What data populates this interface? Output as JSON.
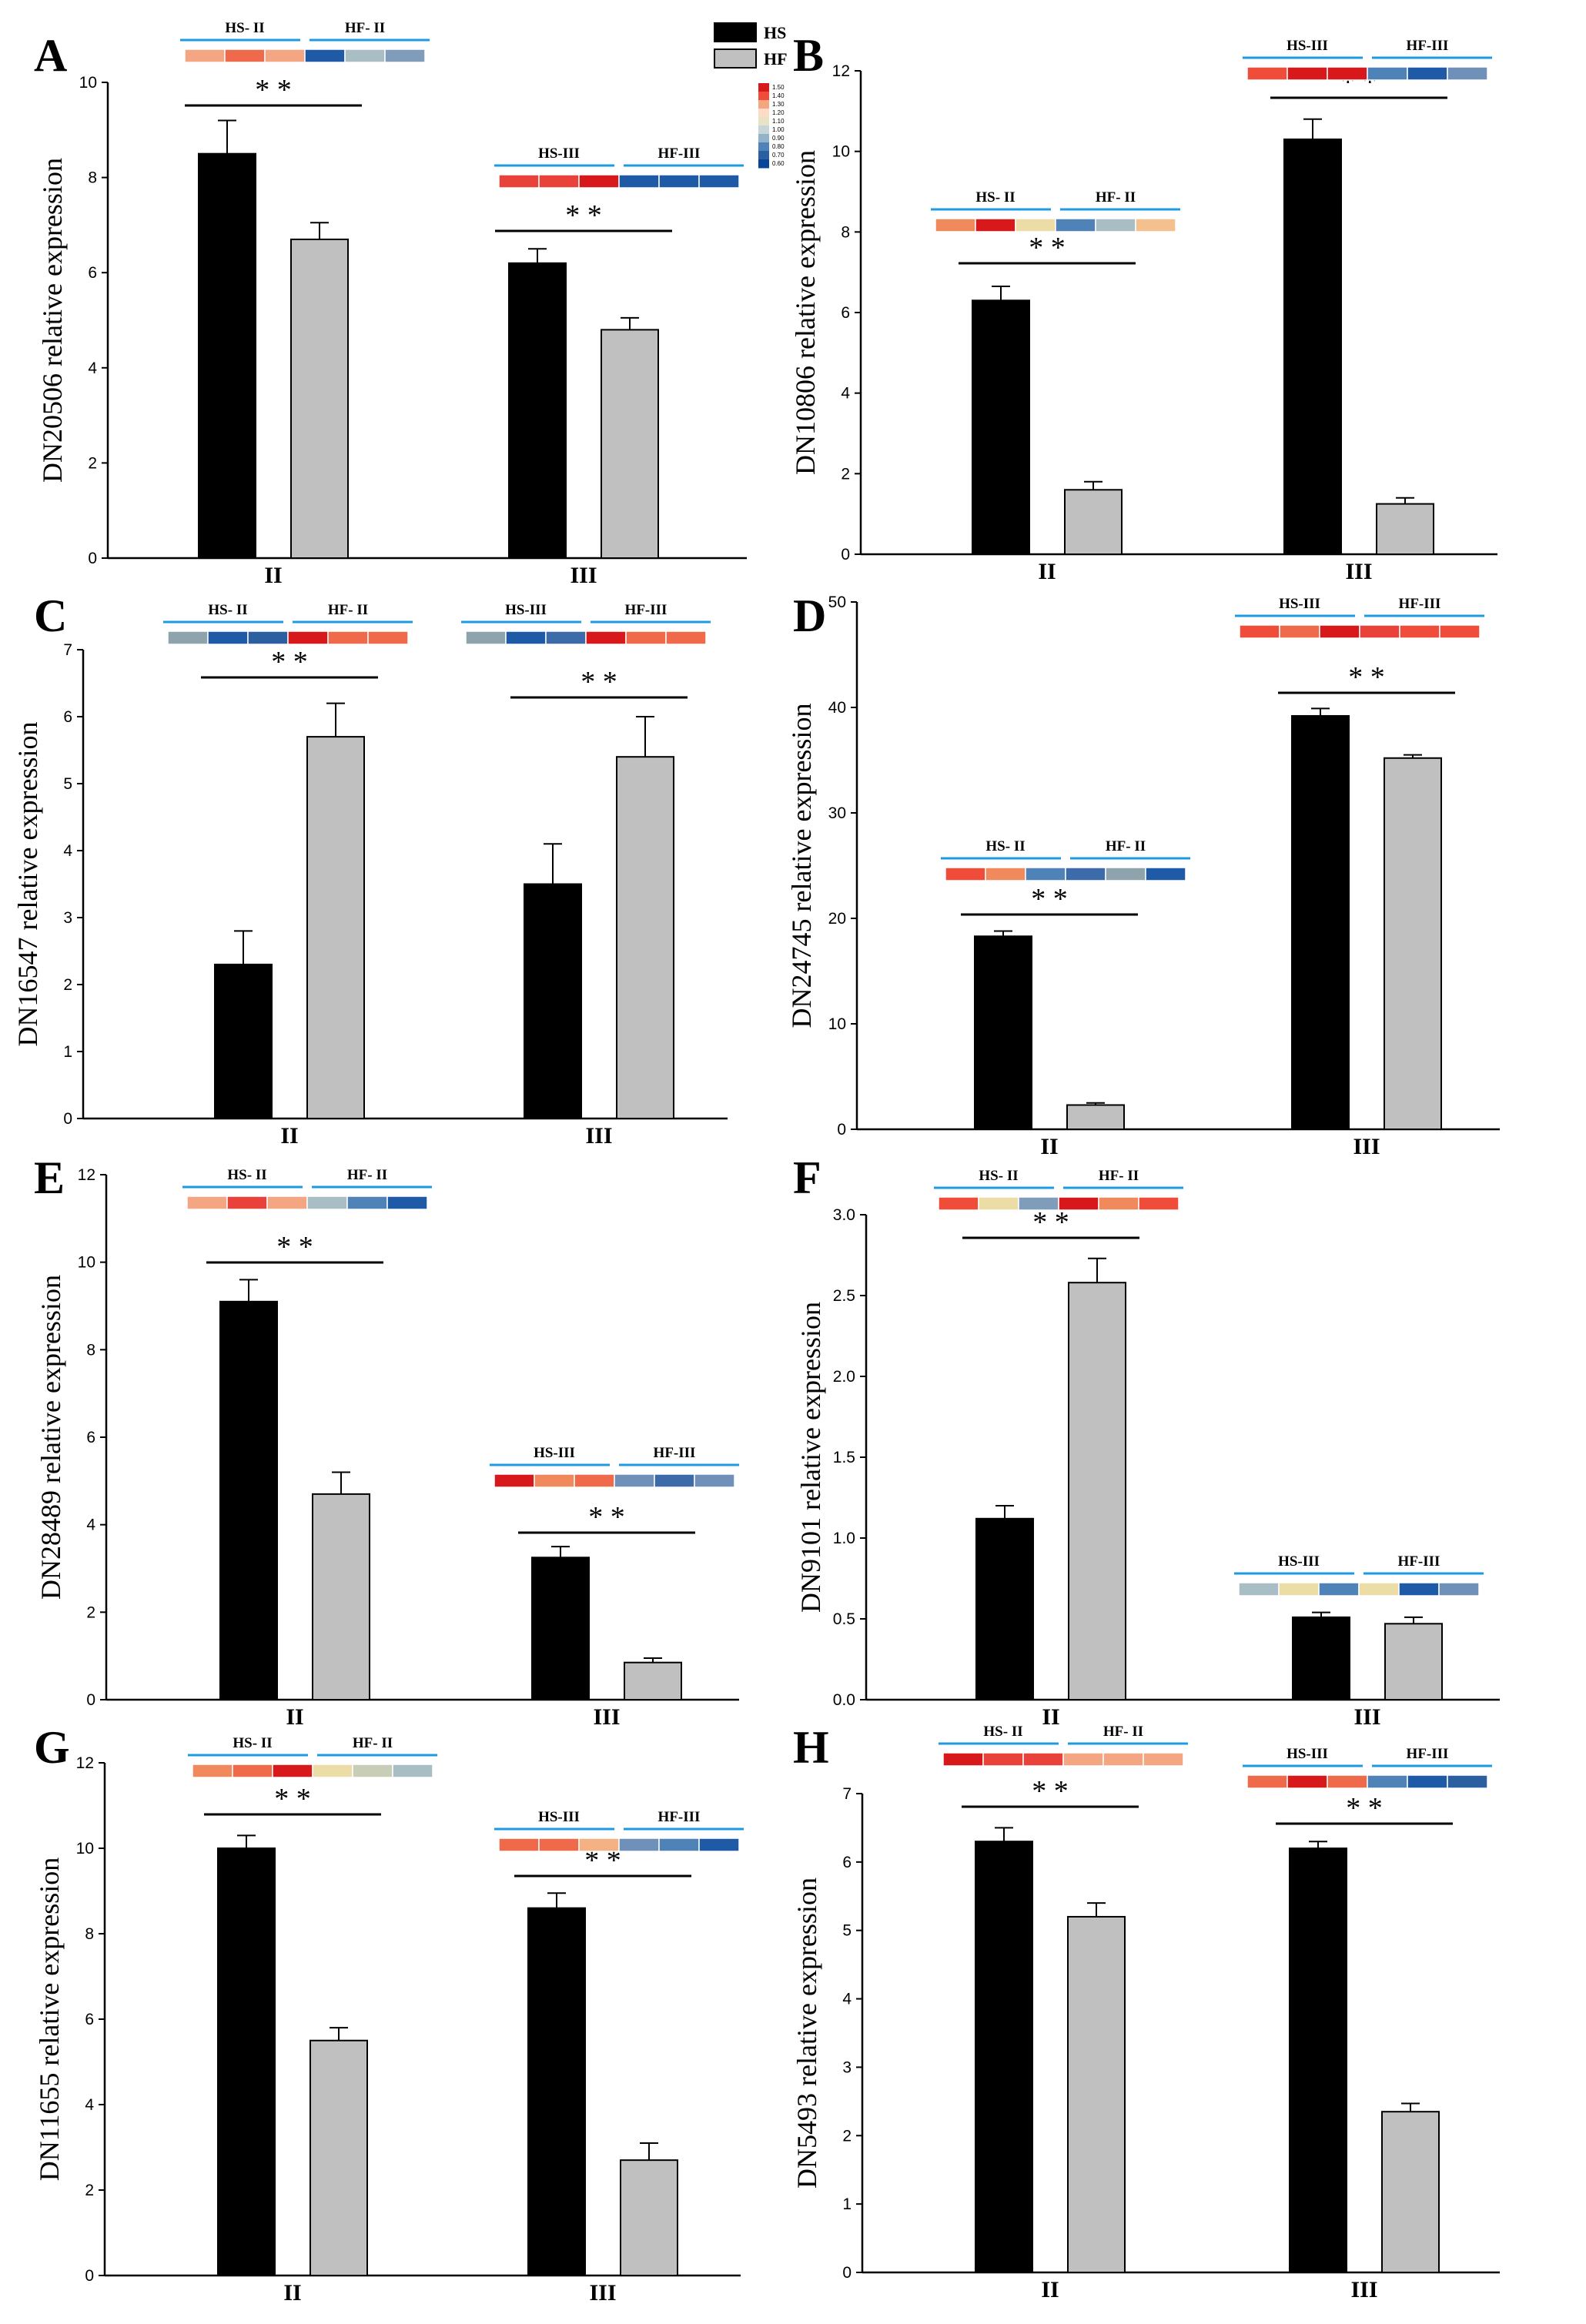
{
  "legend": {
    "items": [
      {
        "label": "HS",
        "color": "#000000"
      },
      {
        "label": "HF",
        "color": "#c0c0c0"
      }
    ],
    "colorbar": {
      "ticks": [
        "1.50",
        "1.40",
        "1.30",
        "1.20",
        "1.10",
        "1.00",
        "0.90",
        "0.80",
        "0.70",
        "0.60"
      ],
      "colors": [
        "#d7191c",
        "#ef4d3a",
        "#f4a582",
        "#fddbc7",
        "#e8e3c8",
        "#c6d6d8",
        "#92b4c8",
        "#4f82b6",
        "#2b5fa0",
        "#08449a"
      ]
    }
  },
  "chart_data": [
    {
      "letter": "A",
      "type": "bar",
      "ylabel": "DN20506 relative expression",
      "categories": [
        "II",
        "III"
      ],
      "ylim": [
        0,
        10
      ],
      "yticks": [
        "0",
        "2",
        "4",
        "6",
        "8",
        "10"
      ],
      "series": [
        {
          "name": "HS",
          "values": [
            8.5,
            6.2
          ],
          "errors": [
            0.7,
            0.3
          ]
        },
        {
          "name": "HF",
          "values": [
            6.7,
            4.8
          ],
          "errors": [
            0.35,
            0.25
          ]
        }
      ],
      "significance": [
        "* *",
        "* *"
      ],
      "heatmaps": [
        {
          "labels": [
            "HS- II",
            "HF- II"
          ],
          "colors": [
            "#f4a582",
            "#ef6a4a",
            "#f4a582",
            "#1f5aa6",
            "#a8bdc4",
            "#7f9dbb"
          ]
        },
        {
          "labels": [
            "HS-III",
            "HF-III"
          ],
          "colors": [
            "#e8423b",
            "#e8423b",
            "#d7191c",
            "#1f5aa6",
            "#1f5aa6",
            "#1f5aa6"
          ]
        }
      ]
    },
    {
      "letter": "B",
      "type": "bar",
      "ylabel": "DN10806 relative expression",
      "categories": [
        "II",
        "III"
      ],
      "ylim": [
        0,
        12
      ],
      "yticks": [
        "0",
        "2",
        "4",
        "6",
        "8",
        "10",
        "12"
      ],
      "series": [
        {
          "name": "HS",
          "values": [
            6.3,
            10.3
          ],
          "errors": [
            0.35,
            0.5
          ]
        },
        {
          "name": "HF",
          "values": [
            1.6,
            1.25
          ],
          "errors": [
            0.2,
            0.15
          ]
        }
      ],
      "significance": [
        "* *",
        "* *"
      ],
      "heatmaps": [
        {
          "labels": [
            "HS- II",
            "HF- II"
          ],
          "colors": [
            "#f08a5d",
            "#d7191c",
            "#ecdca6",
            "#4f82b6",
            "#a8bdc4",
            "#f4c08e"
          ]
        },
        {
          "labels": [
            "HS-III",
            "HF-III"
          ],
          "colors": [
            "#ef4d3a",
            "#d7191c",
            "#d7191c",
            "#4f82b6",
            "#1f5aa6",
            "#6f90b8"
          ]
        }
      ]
    },
    {
      "letter": "C",
      "type": "bar",
      "ylabel": "DN16547 relative expression",
      "categories": [
        "II",
        "III"
      ],
      "ylim": [
        0,
        7
      ],
      "yticks": [
        "0",
        "1",
        "2",
        "3",
        "4",
        "5",
        "6",
        "7"
      ],
      "series": [
        {
          "name": "HS",
          "values": [
            2.3,
            3.5
          ],
          "errors": [
            0.5,
            0.6
          ]
        },
        {
          "name": "HF",
          "values": [
            5.7,
            5.4
          ],
          "errors": [
            0.5,
            0.6
          ]
        }
      ],
      "significance": [
        "* *",
        "* *"
      ],
      "heatmaps": [
        {
          "labels": [
            "HS- II",
            "HF- II"
          ],
          "colors": [
            "#8fa3ad",
            "#1f5aa6",
            "#2b5fa0",
            "#d7191c",
            "#ef6a4a",
            "#ef6a4a"
          ]
        },
        {
          "labels": [
            "HS-III",
            "HF-III"
          ],
          "colors": [
            "#8fa3ad",
            "#1f5aa6",
            "#3d6aa8",
            "#d7191c",
            "#ef6a4a",
            "#ef6a4a"
          ]
        }
      ]
    },
    {
      "letter": "D",
      "type": "bar",
      "ylabel": "DN24745 relative expression",
      "categories": [
        "II",
        "III"
      ],
      "ylim": [
        0,
        50
      ],
      "yticks": [
        "0",
        "10",
        "20",
        "30",
        "40",
        "50"
      ],
      "series": [
        {
          "name": "HS",
          "values": [
            18.3,
            39.2
          ],
          "errors": [
            0.5,
            0.7
          ]
        },
        {
          "name": "HF",
          "values": [
            2.3,
            35.2
          ],
          "errors": [
            0.2,
            0.3
          ]
        }
      ],
      "significance": [
        "* *",
        "* *"
      ],
      "heatmaps": [
        {
          "labels": [
            "HS- II",
            "HF- II"
          ],
          "colors": [
            "#ef4d3a",
            "#f08a5d",
            "#4f82b6",
            "#3d6aa8",
            "#8fa3ad",
            "#1f5aa6"
          ]
        },
        {
          "labels": [
            "HS-III",
            "HF-III"
          ],
          "colors": [
            "#ef4d3a",
            "#ef6a4a",
            "#d7191c",
            "#e8423b",
            "#ef4d3a",
            "#ef4d3a"
          ]
        }
      ]
    },
    {
      "letter": "E",
      "type": "bar",
      "ylabel": "DN28489 relative expression",
      "categories": [
        "II",
        "III"
      ],
      "ylim": [
        0,
        12
      ],
      "yticks": [
        "0",
        "2",
        "4",
        "6",
        "8",
        "10",
        "12"
      ],
      "series": [
        {
          "name": "HS",
          "values": [
            9.1,
            3.25
          ],
          "errors": [
            0.5,
            0.25
          ]
        },
        {
          "name": "HF",
          "values": [
            4.7,
            0.85
          ],
          "errors": [
            0.5,
            0.1
          ]
        }
      ],
      "significance": [
        "* *",
        "* *"
      ],
      "heatmaps": [
        {
          "labels": [
            "HS- II",
            "HF- II"
          ],
          "colors": [
            "#f4a582",
            "#e8423b",
            "#f4a582",
            "#a8bdc4",
            "#4f82b6",
            "#1f5aa6"
          ]
        },
        {
          "labels": [
            "HS-III",
            "HF-III"
          ],
          "colors": [
            "#d7191c",
            "#f08a5d",
            "#ef6a4a",
            "#6f90b8",
            "#3d6aa8",
            "#6f90b8"
          ]
        }
      ]
    },
    {
      "letter": "F",
      "type": "bar",
      "ylabel": "DN9101 relative expression",
      "categories": [
        "II",
        "III"
      ],
      "ylim": [
        0,
        3.0
      ],
      "yticks": [
        "0.0",
        "0.5",
        "1.0",
        "1.5",
        "2.0",
        "2.5",
        "3.0"
      ],
      "series": [
        {
          "name": "HS",
          "values": [
            1.12,
            0.51
          ],
          "errors": [
            0.08,
            0.03
          ]
        },
        {
          "name": "HF",
          "values": [
            2.58,
            0.47
          ],
          "errors": [
            0.15,
            0.04
          ]
        }
      ],
      "significance": [
        "* *",
        ""
      ],
      "heatmaps": [
        {
          "labels": [
            "HS- II",
            "HF- II"
          ],
          "colors": [
            "#ef4d3a",
            "#ecdca6",
            "#7f9dbb",
            "#d7191c",
            "#f08a5d",
            "#ef4d3a"
          ]
        },
        {
          "labels": [
            "HS-III",
            "HF-III"
          ],
          "colors": [
            "#a8bdc4",
            "#ecdca6",
            "#4f82b6",
            "#ecdca6",
            "#1f5aa6",
            "#6f90b8"
          ]
        }
      ]
    },
    {
      "letter": "G",
      "type": "bar",
      "ylabel": "DN11655 relative expression",
      "categories": [
        "II",
        "III"
      ],
      "ylim": [
        0,
        12
      ],
      "yticks": [
        "0",
        "2",
        "4",
        "6",
        "8",
        "10",
        "12"
      ],
      "series": [
        {
          "name": "HS",
          "values": [
            10.0,
            8.6
          ],
          "errors": [
            0.3,
            0.35
          ]
        },
        {
          "name": "HF",
          "values": [
            5.5,
            2.7
          ],
          "errors": [
            0.3,
            0.4
          ]
        }
      ],
      "significance": [
        "* *",
        "* *"
      ],
      "heatmaps": [
        {
          "labels": [
            "HS- II",
            "HF- II"
          ],
          "colors": [
            "#f08a5d",
            "#ef6a4a",
            "#d7191c",
            "#ecdca6",
            "#c8cdb8",
            "#a8bdc4"
          ]
        },
        {
          "labels": [
            "HS-III",
            "HF-III"
          ],
          "colors": [
            "#ef6a4a",
            "#ef6a4a",
            "#f4b183",
            "#6f90b8",
            "#4f82b6",
            "#1f5aa6"
          ]
        }
      ]
    },
    {
      "letter": "H",
      "type": "bar",
      "ylabel": "DN5493 relative expression",
      "categories": [
        "II",
        "III"
      ],
      "ylim": [
        0,
        7
      ],
      "yticks": [
        "0",
        "1",
        "2",
        "3",
        "4",
        "5",
        "6",
        "7"
      ],
      "series": [
        {
          "name": "HS",
          "values": [
            6.3,
            6.2
          ],
          "errors": [
            0.2,
            0.1
          ]
        },
        {
          "name": "HF",
          "values": [
            5.2,
            2.35
          ],
          "errors": [
            0.2,
            0.12
          ]
        }
      ],
      "significance": [
        "* *",
        "* *"
      ],
      "heatmaps": [
        {
          "labels": [
            "HS- II",
            "HF- II"
          ],
          "colors": [
            "#d7191c",
            "#e8423b",
            "#e8423b",
            "#f4a582",
            "#f4a582",
            "#f4a582"
          ]
        },
        {
          "labels": [
            "HS-III",
            "HF-III"
          ],
          "colors": [
            "#ef6a4a",
            "#d7191c",
            "#ef6a4a",
            "#4f82b6",
            "#1f5aa6",
            "#2b5fa0"
          ]
        }
      ]
    }
  ]
}
